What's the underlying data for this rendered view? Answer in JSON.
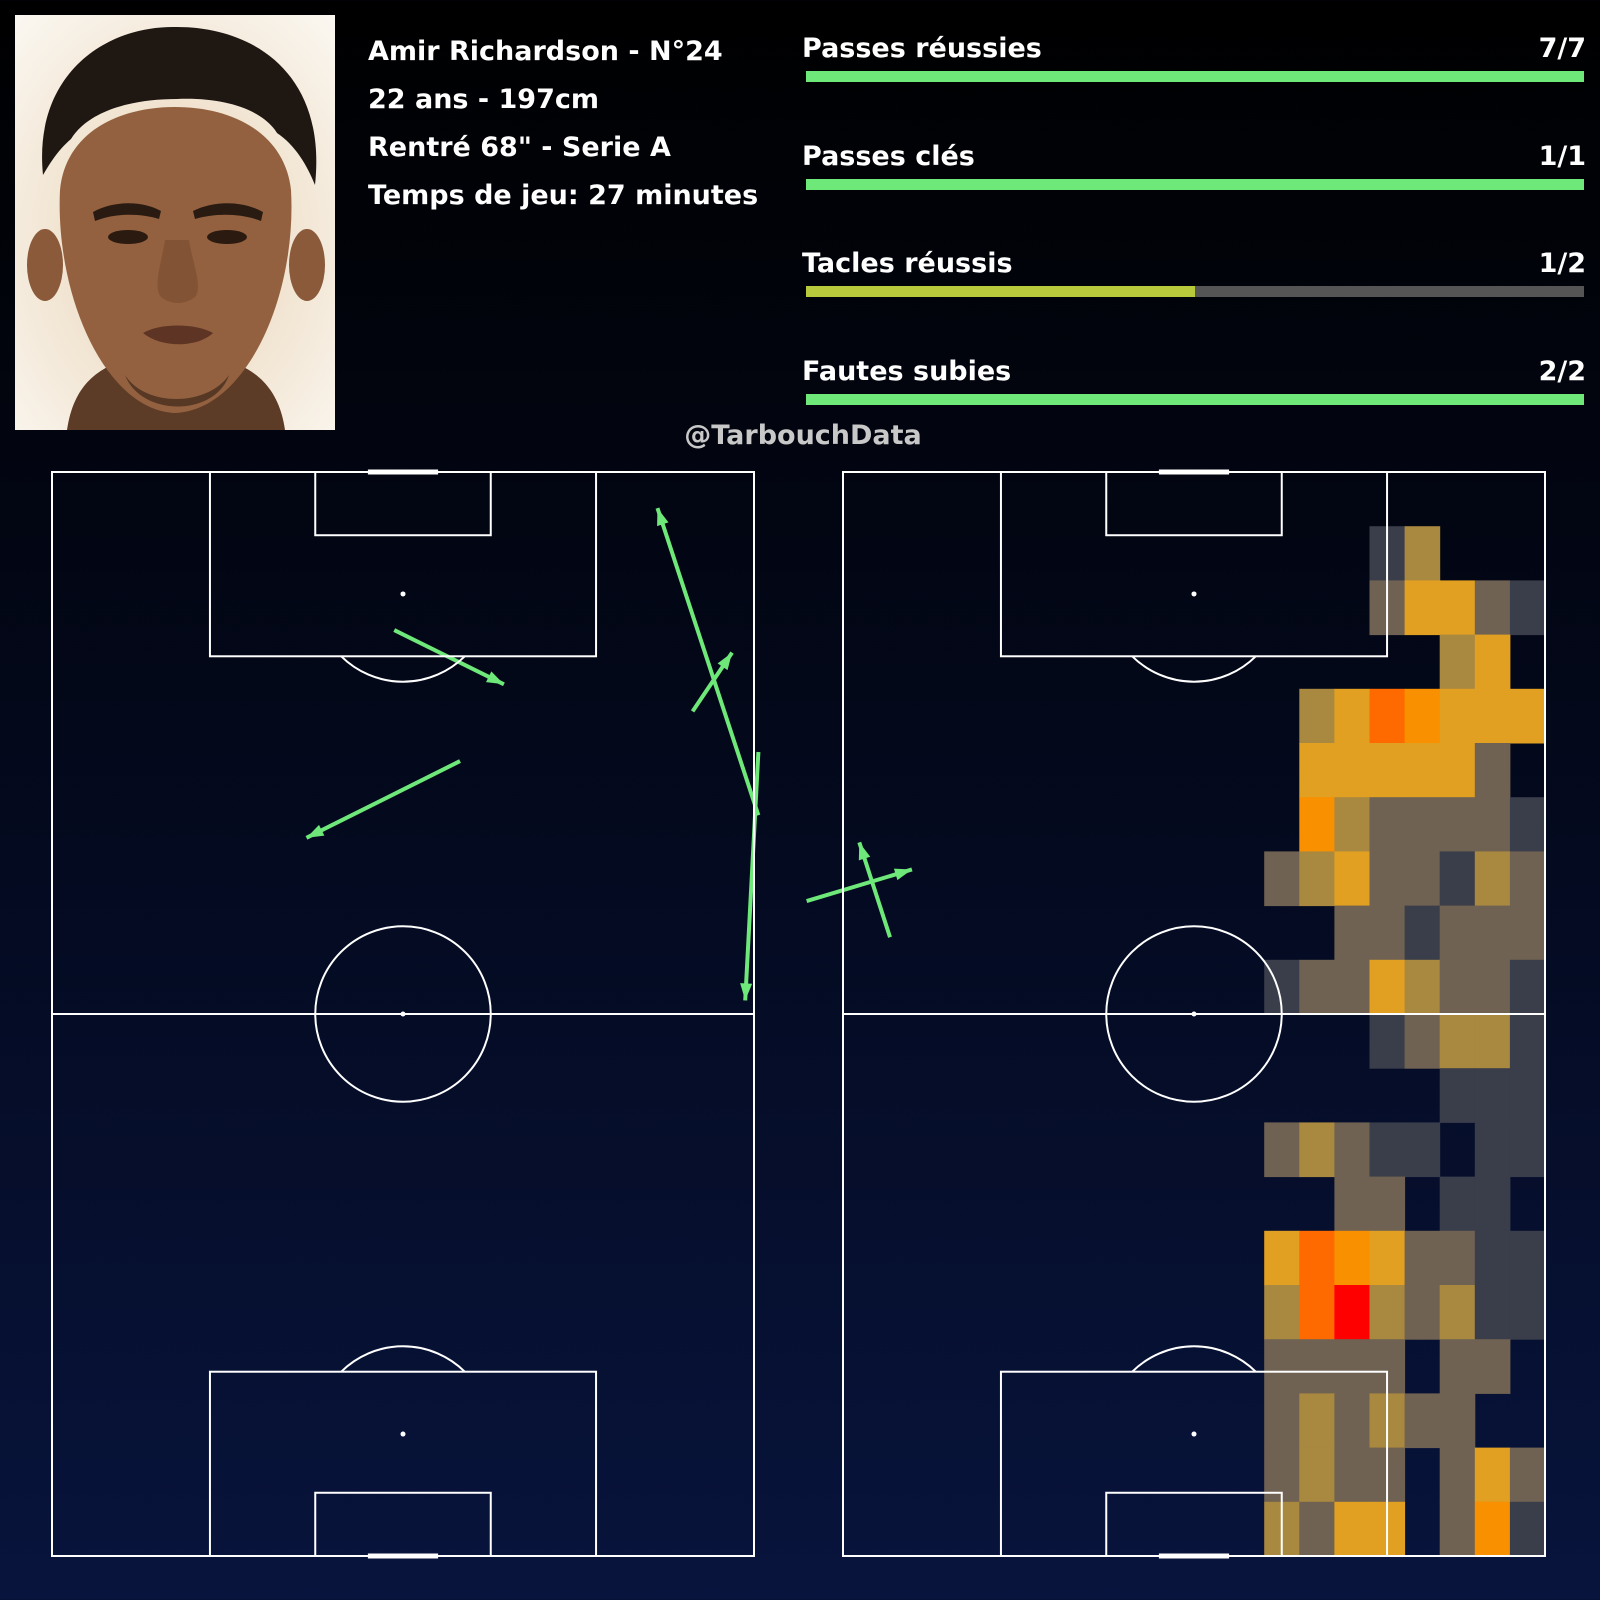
{
  "player": {
    "name_line": "Amir Richardson - N°24",
    "age_height": "22 ans - 197cm",
    "entry": "Rentré 68\" - Serie A",
    "playing_time": "Temps de jeu: 27 minutes",
    "photo": "player-portrait"
  },
  "stats": [
    {
      "label": "Passes réussies",
      "value": "7/7",
      "made": 7,
      "total": 7,
      "color": "#6de879"
    },
    {
      "label": "Passes clés",
      "value": "1/1",
      "made": 1,
      "total": 1,
      "color": "#6de879"
    },
    {
      "label": "Tacles réussis",
      "value": "1/2",
      "made": 1,
      "total": 2,
      "color": "#b8c93b"
    },
    {
      "label": "Fautes subies",
      "value": "2/2",
      "made": 2,
      "total": 2,
      "color": "#6de879"
    }
  ],
  "credit": "@TarbouchData",
  "chart_data": [
    {
      "type": "pass-map",
      "pitch": {
        "length": 120,
        "width": 80,
        "orientation": "vertical"
      },
      "arrow_color": "#6de879",
      "passes": [
        {
          "start": [
            80.5,
            38.0
          ],
          "end": [
            69.0,
            4.0
          ]
        },
        {
          "start": [
            86.0,
            47.5
          ],
          "end": [
            98.0,
            44.0
          ]
        },
        {
          "start": [
            95.5,
            51.5
          ],
          "end": [
            92.0,
            41.0
          ]
        },
        {
          "start": [
            80.5,
            31.0
          ],
          "end": [
            79.0,
            58.5
          ]
        },
        {
          "start": [
            73.0,
            26.5
          ],
          "end": [
            77.5,
            20.0
          ]
        },
        {
          "start": [
            46.5,
            32.0
          ],
          "end": [
            29.0,
            40.5
          ]
        },
        {
          "start": [
            39.0,
            17.5
          ],
          "end": [
            51.5,
            23.5
          ]
        }
      ]
    },
    {
      "type": "heatmap",
      "pitch": {
        "length": 120,
        "width": 80,
        "orientation": "vertical"
      },
      "grid": {
        "cols": 20,
        "rows": 20
      },
      "colors": [
        "#3a3d4a",
        "#706252",
        "#a98840",
        "#e2a022",
        "#f99000",
        "#ff6a00",
        "#ff0000"
      ],
      "cells": [
        [
          1,
          3,
          0
        ],
        [
          1,
          4,
          2
        ],
        [
          2,
          3,
          1
        ],
        [
          2,
          4,
          3
        ],
        [
          2,
          5,
          3
        ],
        [
          2,
          6,
          1
        ],
        [
          2,
          7,
          0
        ],
        [
          3,
          5,
          2
        ],
        [
          3,
          6,
          3
        ],
        [
          4,
          1,
          2
        ],
        [
          4,
          2,
          3
        ],
        [
          4,
          3,
          5
        ],
        [
          4,
          4,
          4
        ],
        [
          4,
          5,
          3
        ],
        [
          4,
          6,
          3
        ],
        [
          4,
          7,
          3
        ],
        [
          5,
          1,
          3
        ],
        [
          5,
          2,
          3
        ],
        [
          5,
          3,
          3
        ],
        [
          5,
          4,
          3
        ],
        [
          5,
          5,
          3
        ],
        [
          5,
          6,
          1
        ],
        [
          6,
          1,
          4
        ],
        [
          6,
          2,
          2
        ],
        [
          6,
          3,
          1
        ],
        [
          6,
          4,
          1
        ],
        [
          6,
          5,
          1
        ],
        [
          6,
          6,
          1
        ],
        [
          6,
          7,
          0
        ],
        [
          7,
          0,
          1
        ],
        [
          7,
          1,
          2
        ],
        [
          7,
          2,
          3
        ],
        [
          7,
          3,
          1
        ],
        [
          7,
          4,
          1
        ],
        [
          7,
          5,
          0
        ],
        [
          7,
          6,
          2
        ],
        [
          7,
          7,
          1
        ],
        [
          8,
          2,
          1
        ],
        [
          8,
          3,
          1
        ],
        [
          8,
          4,
          0
        ],
        [
          8,
          5,
          1
        ],
        [
          8,
          6,
          1
        ],
        [
          8,
          7,
          1
        ],
        [
          9,
          0,
          0
        ],
        [
          9,
          1,
          1
        ],
        [
          9,
          2,
          1
        ],
        [
          9,
          3,
          3
        ],
        [
          9,
          4,
          2
        ],
        [
          9,
          5,
          1
        ],
        [
          9,
          6,
          1
        ],
        [
          9,
          7,
          0
        ],
        [
          10,
          3,
          0
        ],
        [
          10,
          4,
          1
        ],
        [
          10,
          5,
          2
        ],
        [
          10,
          6,
          2
        ],
        [
          10,
          7,
          0
        ],
        [
          11,
          5,
          0
        ],
        [
          11,
          6,
          0
        ],
        [
          11,
          7,
          0
        ],
        [
          12,
          0,
          1
        ],
        [
          12,
          1,
          2
        ],
        [
          12,
          2,
          1
        ],
        [
          12,
          3,
          0
        ],
        [
          12,
          4,
          0
        ],
        [
          12,
          6,
          0
        ],
        [
          12,
          7,
          0
        ],
        [
          13,
          2,
          1
        ],
        [
          13,
          3,
          1
        ],
        [
          13,
          5,
          0
        ],
        [
          13,
          6,
          0
        ],
        [
          14,
          0,
          3
        ],
        [
          14,
          1,
          5
        ],
        [
          14,
          2,
          4
        ],
        [
          14,
          3,
          3
        ],
        [
          14,
          4,
          1
        ],
        [
          14,
          5,
          1
        ],
        [
          14,
          6,
          0
        ],
        [
          14,
          7,
          0
        ],
        [
          15,
          0,
          2
        ],
        [
          15,
          1,
          5
        ],
        [
          15,
          2,
          6
        ],
        [
          15,
          3,
          2
        ],
        [
          15,
          4,
          1
        ],
        [
          15,
          5,
          2
        ],
        [
          15,
          6,
          0
        ],
        [
          15,
          7,
          0
        ],
        [
          16,
          0,
          1
        ],
        [
          16,
          1,
          1
        ],
        [
          16,
          2,
          1
        ],
        [
          16,
          3,
          1
        ],
        [
          16,
          5,
          1
        ],
        [
          16,
          6,
          1
        ],
        [
          17,
          0,
          1
        ],
        [
          17,
          1,
          2
        ],
        [
          17,
          2,
          1
        ],
        [
          17,
          3,
          2
        ],
        [
          17,
          4,
          1
        ],
        [
          17,
          5,
          1
        ],
        [
          18,
          0,
          1
        ],
        [
          18,
          1,
          2
        ],
        [
          18,
          2,
          1
        ],
        [
          18,
          3,
          1
        ],
        [
          18,
          5,
          1
        ],
        [
          18,
          6,
          3
        ],
        [
          18,
          7,
          1
        ],
        [
          19,
          0,
          2
        ],
        [
          19,
          1,
          1
        ],
        [
          19,
          2,
          3
        ],
        [
          19,
          3,
          3
        ],
        [
          19,
          5,
          1
        ],
        [
          19,
          6,
          4
        ],
        [
          19,
          7,
          0
        ]
      ]
    }
  ]
}
